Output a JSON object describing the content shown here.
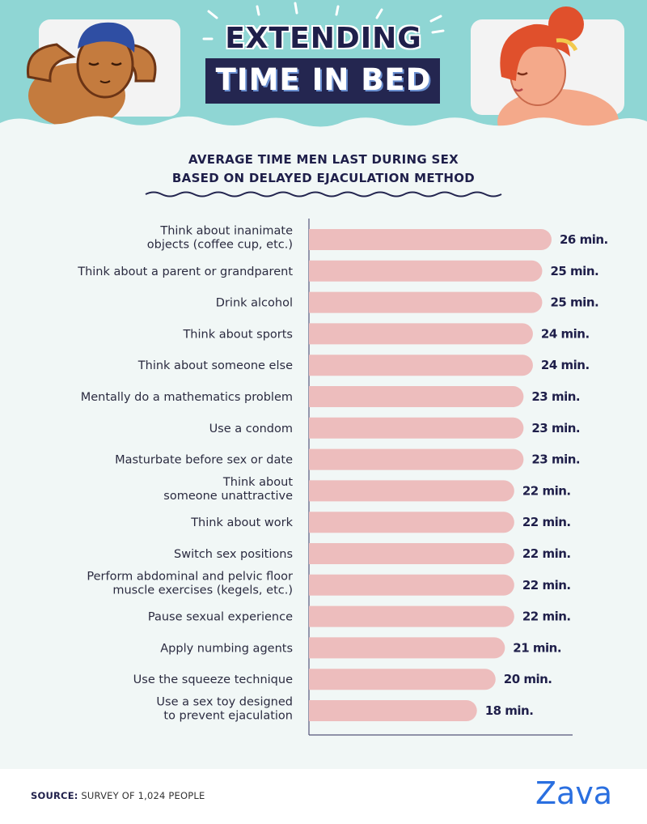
{
  "header": {
    "title_line1": "EXTENDING",
    "title_line2": "TIME IN BED"
  },
  "colors": {
    "header_bg": "#8fd6d4",
    "page_bg": "#f1f7f6",
    "bar": "#edbdbd",
    "navy": "#242650",
    "brand": "#2a6fe0"
  },
  "chart_data": {
    "type": "bar",
    "orientation": "horizontal",
    "title": "AVERAGE TIME MEN LAST DURING SEX\nBASED ON DELAYED EJACULATION METHOD",
    "categories": [
      "Think about inanimate\nobjects (coffee cup, etc.)",
      "Think about a parent or grandparent",
      "Drink alcohol",
      "Think about sports",
      "Think about someone else",
      "Mentally do a mathematics problem",
      "Use a condom",
      "Masturbate before sex or date",
      "Think about\nsomeone unattractive",
      "Think about work",
      "Switch sex positions",
      "Perform abdominal and pelvic floor\nmuscle exercises (kegels, etc.)",
      "Pause sexual experience",
      "Apply numbing agents",
      "Use the squeeze technique",
      "Use a sex toy designed\nto prevent ejaculation"
    ],
    "values": [
      26,
      25,
      25,
      24,
      24,
      23,
      23,
      23,
      22,
      22,
      22,
      22,
      22,
      21,
      20,
      18
    ],
    "value_labels": [
      "26 min.",
      "25 min.",
      "25 min.",
      "24 min.",
      "24 min.",
      "23 min.",
      "23 min.",
      "23 min.",
      "22 min.",
      "22 min.",
      "22 min.",
      "22 min.",
      "22 min.",
      "21 min.",
      "20 min.",
      "18 min."
    ],
    "xlim": [
      0,
      30
    ],
    "grid": false,
    "legend": "none"
  },
  "footer": {
    "source_label": "SOURCE:",
    "source_text": " SURVEY OF 1,024 PEOPLE",
    "brand": "Zava"
  }
}
